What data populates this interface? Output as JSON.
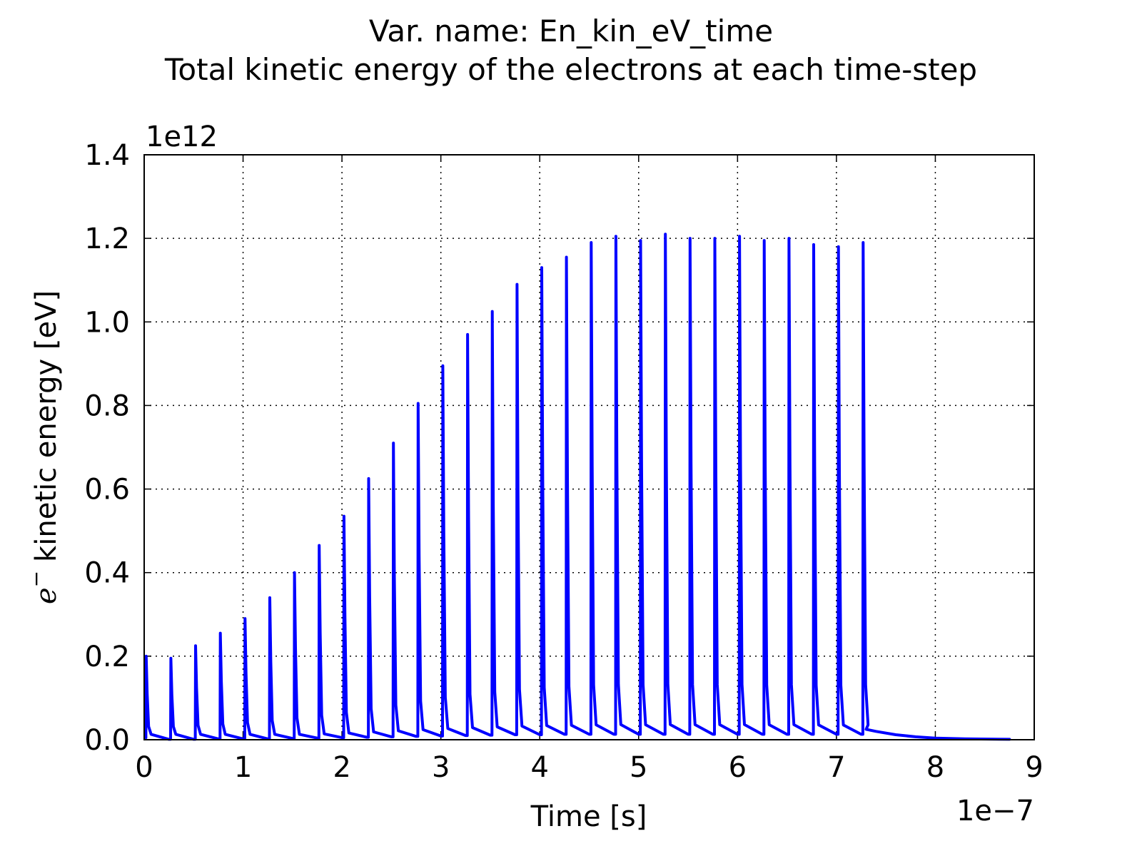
{
  "title_line1": "Var. name: En_kin_eV_time",
  "title_line2": "Total kinetic energy of the electrons at each time-step",
  "chart_data": {
    "type": "line",
    "xlabel": "Time [s]",
    "ylabel": "kinetic energy [eV]",
    "ylabel_symbol": "e",
    "ylabel_superscript": "−",
    "x_multiplier": "1e−7",
    "y_multiplier": "1e12",
    "xlim": [
      0,
      9
    ],
    "ylim": [
      0,
      1.4
    ],
    "x_ticks": [
      "0",
      "1",
      "2",
      "3",
      "4",
      "5",
      "6",
      "7",
      "8",
      "9"
    ],
    "y_ticks": [
      "0.0",
      "0.2",
      "0.4",
      "0.6",
      "0.8",
      "1.0",
      "1.2",
      "1.4"
    ],
    "grid": true,
    "line_color": "#0000ff",
    "x_units_note": "x values in units of 1e-7 s; y values in units of 1e12 eV",
    "pulse_period": 0.25,
    "peaks": [
      {
        "x": 0.02,
        "y": 0.2
      },
      {
        "x": 0.27,
        "y": 0.195
      },
      {
        "x": 0.52,
        "y": 0.225
      },
      {
        "x": 0.77,
        "y": 0.255
      },
      {
        "x": 1.02,
        "y": 0.29
      },
      {
        "x": 1.27,
        "y": 0.34
      },
      {
        "x": 1.52,
        "y": 0.4
      },
      {
        "x": 1.77,
        "y": 0.465
      },
      {
        "x": 2.02,
        "y": 0.535
      },
      {
        "x": 2.27,
        "y": 0.625
      },
      {
        "x": 2.52,
        "y": 0.71
      },
      {
        "x": 2.77,
        "y": 0.805
      },
      {
        "x": 3.02,
        "y": 0.895
      },
      {
        "x": 3.27,
        "y": 0.97
      },
      {
        "x": 3.52,
        "y": 1.025
      },
      {
        "x": 3.77,
        "y": 1.09
      },
      {
        "x": 4.02,
        "y": 1.13
      },
      {
        "x": 4.27,
        "y": 1.155
      },
      {
        "x": 4.52,
        "y": 1.19
      },
      {
        "x": 4.77,
        "y": 1.205
      },
      {
        "x": 5.02,
        "y": 1.195
      },
      {
        "x": 5.27,
        "y": 1.21
      },
      {
        "x": 5.52,
        "y": 1.2
      },
      {
        "x": 5.77,
        "y": 1.2
      },
      {
        "x": 6.02,
        "y": 1.205
      },
      {
        "x": 6.27,
        "y": 1.195
      },
      {
        "x": 6.52,
        "y": 1.2
      },
      {
        "x": 6.77,
        "y": 1.185
      },
      {
        "x": 7.02,
        "y": 1.18
      },
      {
        "x": 7.27,
        "y": 1.19
      }
    ],
    "troughs": [
      {
        "x": 0.25,
        "y": 0.001
      },
      {
        "x": 0.5,
        "y": 0.001
      },
      {
        "x": 0.75,
        "y": 0.002
      },
      {
        "x": 1.0,
        "y": 0.002
      },
      {
        "x": 1.25,
        "y": 0.002
      },
      {
        "x": 1.5,
        "y": 0.003
      },
      {
        "x": 1.75,
        "y": 0.004
      },
      {
        "x": 2.0,
        "y": 0.005
      },
      {
        "x": 2.25,
        "y": 0.006
      },
      {
        "x": 2.5,
        "y": 0.007
      },
      {
        "x": 2.75,
        "y": 0.008
      },
      {
        "x": 3.0,
        "y": 0.009
      },
      {
        "x": 3.25,
        "y": 0.01
      },
      {
        "x": 3.5,
        "y": 0.011
      },
      {
        "x": 3.75,
        "y": 0.012
      },
      {
        "x": 4.0,
        "y": 0.012
      },
      {
        "x": 4.25,
        "y": 0.013
      },
      {
        "x": 4.5,
        "y": 0.013
      },
      {
        "x": 4.75,
        "y": 0.013
      },
      {
        "x": 5.0,
        "y": 0.013
      },
      {
        "x": 5.25,
        "y": 0.013
      },
      {
        "x": 5.5,
        "y": 0.013
      },
      {
        "x": 5.75,
        "y": 0.013
      },
      {
        "x": 6.0,
        "y": 0.013
      },
      {
        "x": 6.25,
        "y": 0.013
      },
      {
        "x": 6.5,
        "y": 0.013
      },
      {
        "x": 6.75,
        "y": 0.013
      },
      {
        "x": 7.0,
        "y": 0.013
      },
      {
        "x": 7.25,
        "y": 0.013
      }
    ],
    "tail": [
      {
        "x": 7.3,
        "y": 0.025
      },
      {
        "x": 7.4,
        "y": 0.02
      },
      {
        "x": 7.6,
        "y": 0.012
      },
      {
        "x": 7.8,
        "y": 0.007
      },
      {
        "x": 8.0,
        "y": 0.004
      },
      {
        "x": 8.3,
        "y": 0.002
      },
      {
        "x": 8.75,
        "y": 0.001
      }
    ]
  }
}
